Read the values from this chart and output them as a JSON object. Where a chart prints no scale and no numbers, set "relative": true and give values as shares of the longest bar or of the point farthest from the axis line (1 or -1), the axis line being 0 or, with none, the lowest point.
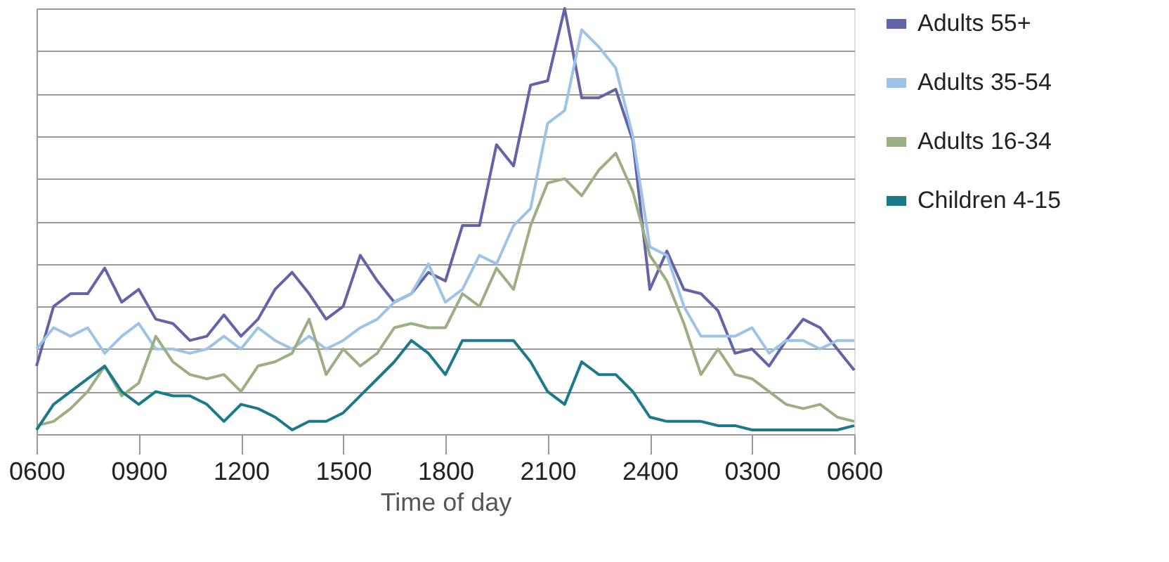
{
  "chart_data": {
    "type": "line",
    "relative": true,
    "xlabel": "Time of day",
    "grid": "y",
    "legend": "top right",
    "marker": "none",
    "line_style": "solid",
    "categories": [
      "0600",
      null,
      null,
      null,
      null,
      null,
      "0900",
      null,
      null,
      null,
      null,
      null,
      "1200",
      null,
      null,
      null,
      null,
      null,
      "1500",
      null,
      null,
      null,
      null,
      null,
      "1800",
      null,
      null,
      null,
      null,
      null,
      "2100",
      null,
      null,
      null,
      null,
      null,
      "2400",
      null,
      null,
      null,
      null,
      null,
      "0300",
      null,
      null,
      null,
      null,
      null,
      "0600"
    ],
    "series": [
      {
        "name": "Adults 55+",
        "color": "#6264a7",
        "values": [
          0.16,
          0.3,
          0.33,
          0.33,
          0.39,
          0.31,
          0.34,
          0.27,
          0.26,
          0.22,
          0.23,
          0.28,
          0.23,
          0.27,
          0.34,
          0.38,
          0.33,
          0.27,
          0.3,
          0.42,
          0.36,
          0.31,
          0.33,
          0.38,
          0.36,
          0.49,
          0.49,
          0.68,
          0.63,
          0.82,
          0.83,
          1.0,
          0.79,
          0.79,
          0.81,
          0.69,
          0.34,
          0.43,
          0.34,
          0.33,
          0.29,
          0.19,
          0.2,
          0.16,
          0.22,
          0.27,
          0.25,
          0.2,
          0.15
        ]
      },
      {
        "name": "Adults 35-54",
        "color": "#9dc3e6",
        "values": [
          0.2,
          0.25,
          0.23,
          0.25,
          0.19,
          0.23,
          0.26,
          0.2,
          0.2,
          0.19,
          0.2,
          0.23,
          0.2,
          0.25,
          0.22,
          0.2,
          0.23,
          0.2,
          0.22,
          0.25,
          0.27,
          0.31,
          0.33,
          0.4,
          0.31,
          0.34,
          0.42,
          0.4,
          0.49,
          0.53,
          0.73,
          0.76,
          0.95,
          0.91,
          0.86,
          0.7,
          0.44,
          0.42,
          0.3,
          0.23,
          0.23,
          0.23,
          0.25,
          0.19,
          0.22,
          0.22,
          0.2,
          0.22,
          0.22
        ]
      },
      {
        "name": "Adults 16-34",
        "color": "#9caf84",
        "values": [
          0.02,
          0.03,
          0.06,
          0.1,
          0.16,
          0.09,
          0.12,
          0.23,
          0.17,
          0.14,
          0.13,
          0.14,
          0.1,
          0.16,
          0.17,
          0.19,
          0.27,
          0.14,
          0.2,
          0.16,
          0.19,
          0.25,
          0.26,
          0.25,
          0.25,
          0.33,
          0.3,
          0.39,
          0.34,
          0.49,
          0.59,
          0.6,
          0.56,
          0.62,
          0.66,
          0.57,
          0.42,
          0.36,
          0.26,
          0.14,
          0.2,
          0.14,
          0.13,
          0.1,
          0.07,
          0.06,
          0.07,
          0.04,
          0.03
        ]
      },
      {
        "name": "Children 4-15",
        "color": "#1a7a8c",
        "values": [
          0.01,
          0.07,
          0.1,
          0.13,
          0.16,
          0.1,
          0.07,
          0.1,
          0.09,
          0.09,
          0.07,
          0.03,
          0.07,
          0.06,
          0.04,
          0.01,
          0.03,
          0.03,
          0.05,
          0.09,
          0.13,
          0.17,
          0.22,
          0.19,
          0.14,
          0.22,
          0.22,
          0.22,
          0.22,
          0.17,
          0.1,
          0.07,
          0.17,
          0.14,
          0.14,
          0.1,
          0.04,
          0.03,
          0.03,
          0.03,
          0.02,
          0.02,
          0.01,
          0.01,
          0.01,
          0.01,
          0.01,
          0.01,
          0.02
        ]
      }
    ]
  }
}
